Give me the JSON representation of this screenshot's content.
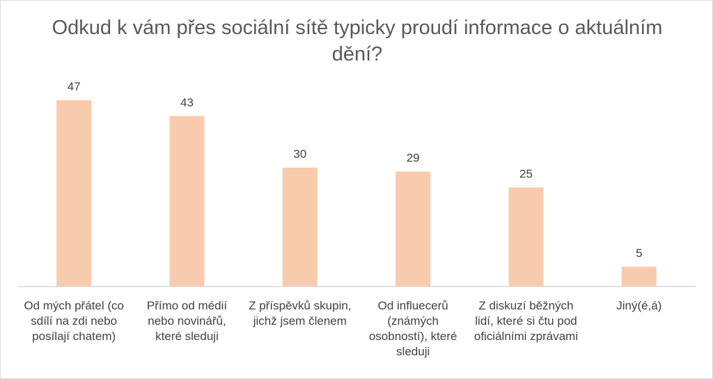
{
  "chart_data": {
    "type": "bar",
    "title": "Odkud k vám přes sociální sítě typicky proudí informace o aktuálním dění?",
    "categories": [
      "Od mých přátel (co sdílí na zdi nebo posílají chatem)",
      "Přímo od médií nebo novinářů, které sleduji",
      "Z příspěvků skupin, jichž jsem členem",
      "Od influecerů (známých osobností), které sleduji",
      "Z diskuzí běžných lidí, které si čtu pod oficiálními zprávami",
      "Jiný(é,á)"
    ],
    "values": [
      47,
      43,
      30,
      29,
      25,
      5
    ],
    "data_labels": [
      "47",
      "43",
      "30",
      "29",
      "25",
      "5"
    ],
    "xlabel": "",
    "ylabel": "",
    "ylim": [
      0,
      50
    ],
    "grid": false,
    "legend": "none",
    "bar_color": "#f8cbad",
    "axis_color": "#d9d9d9",
    "label_color": "#404040",
    "title_color": "#595959"
  }
}
